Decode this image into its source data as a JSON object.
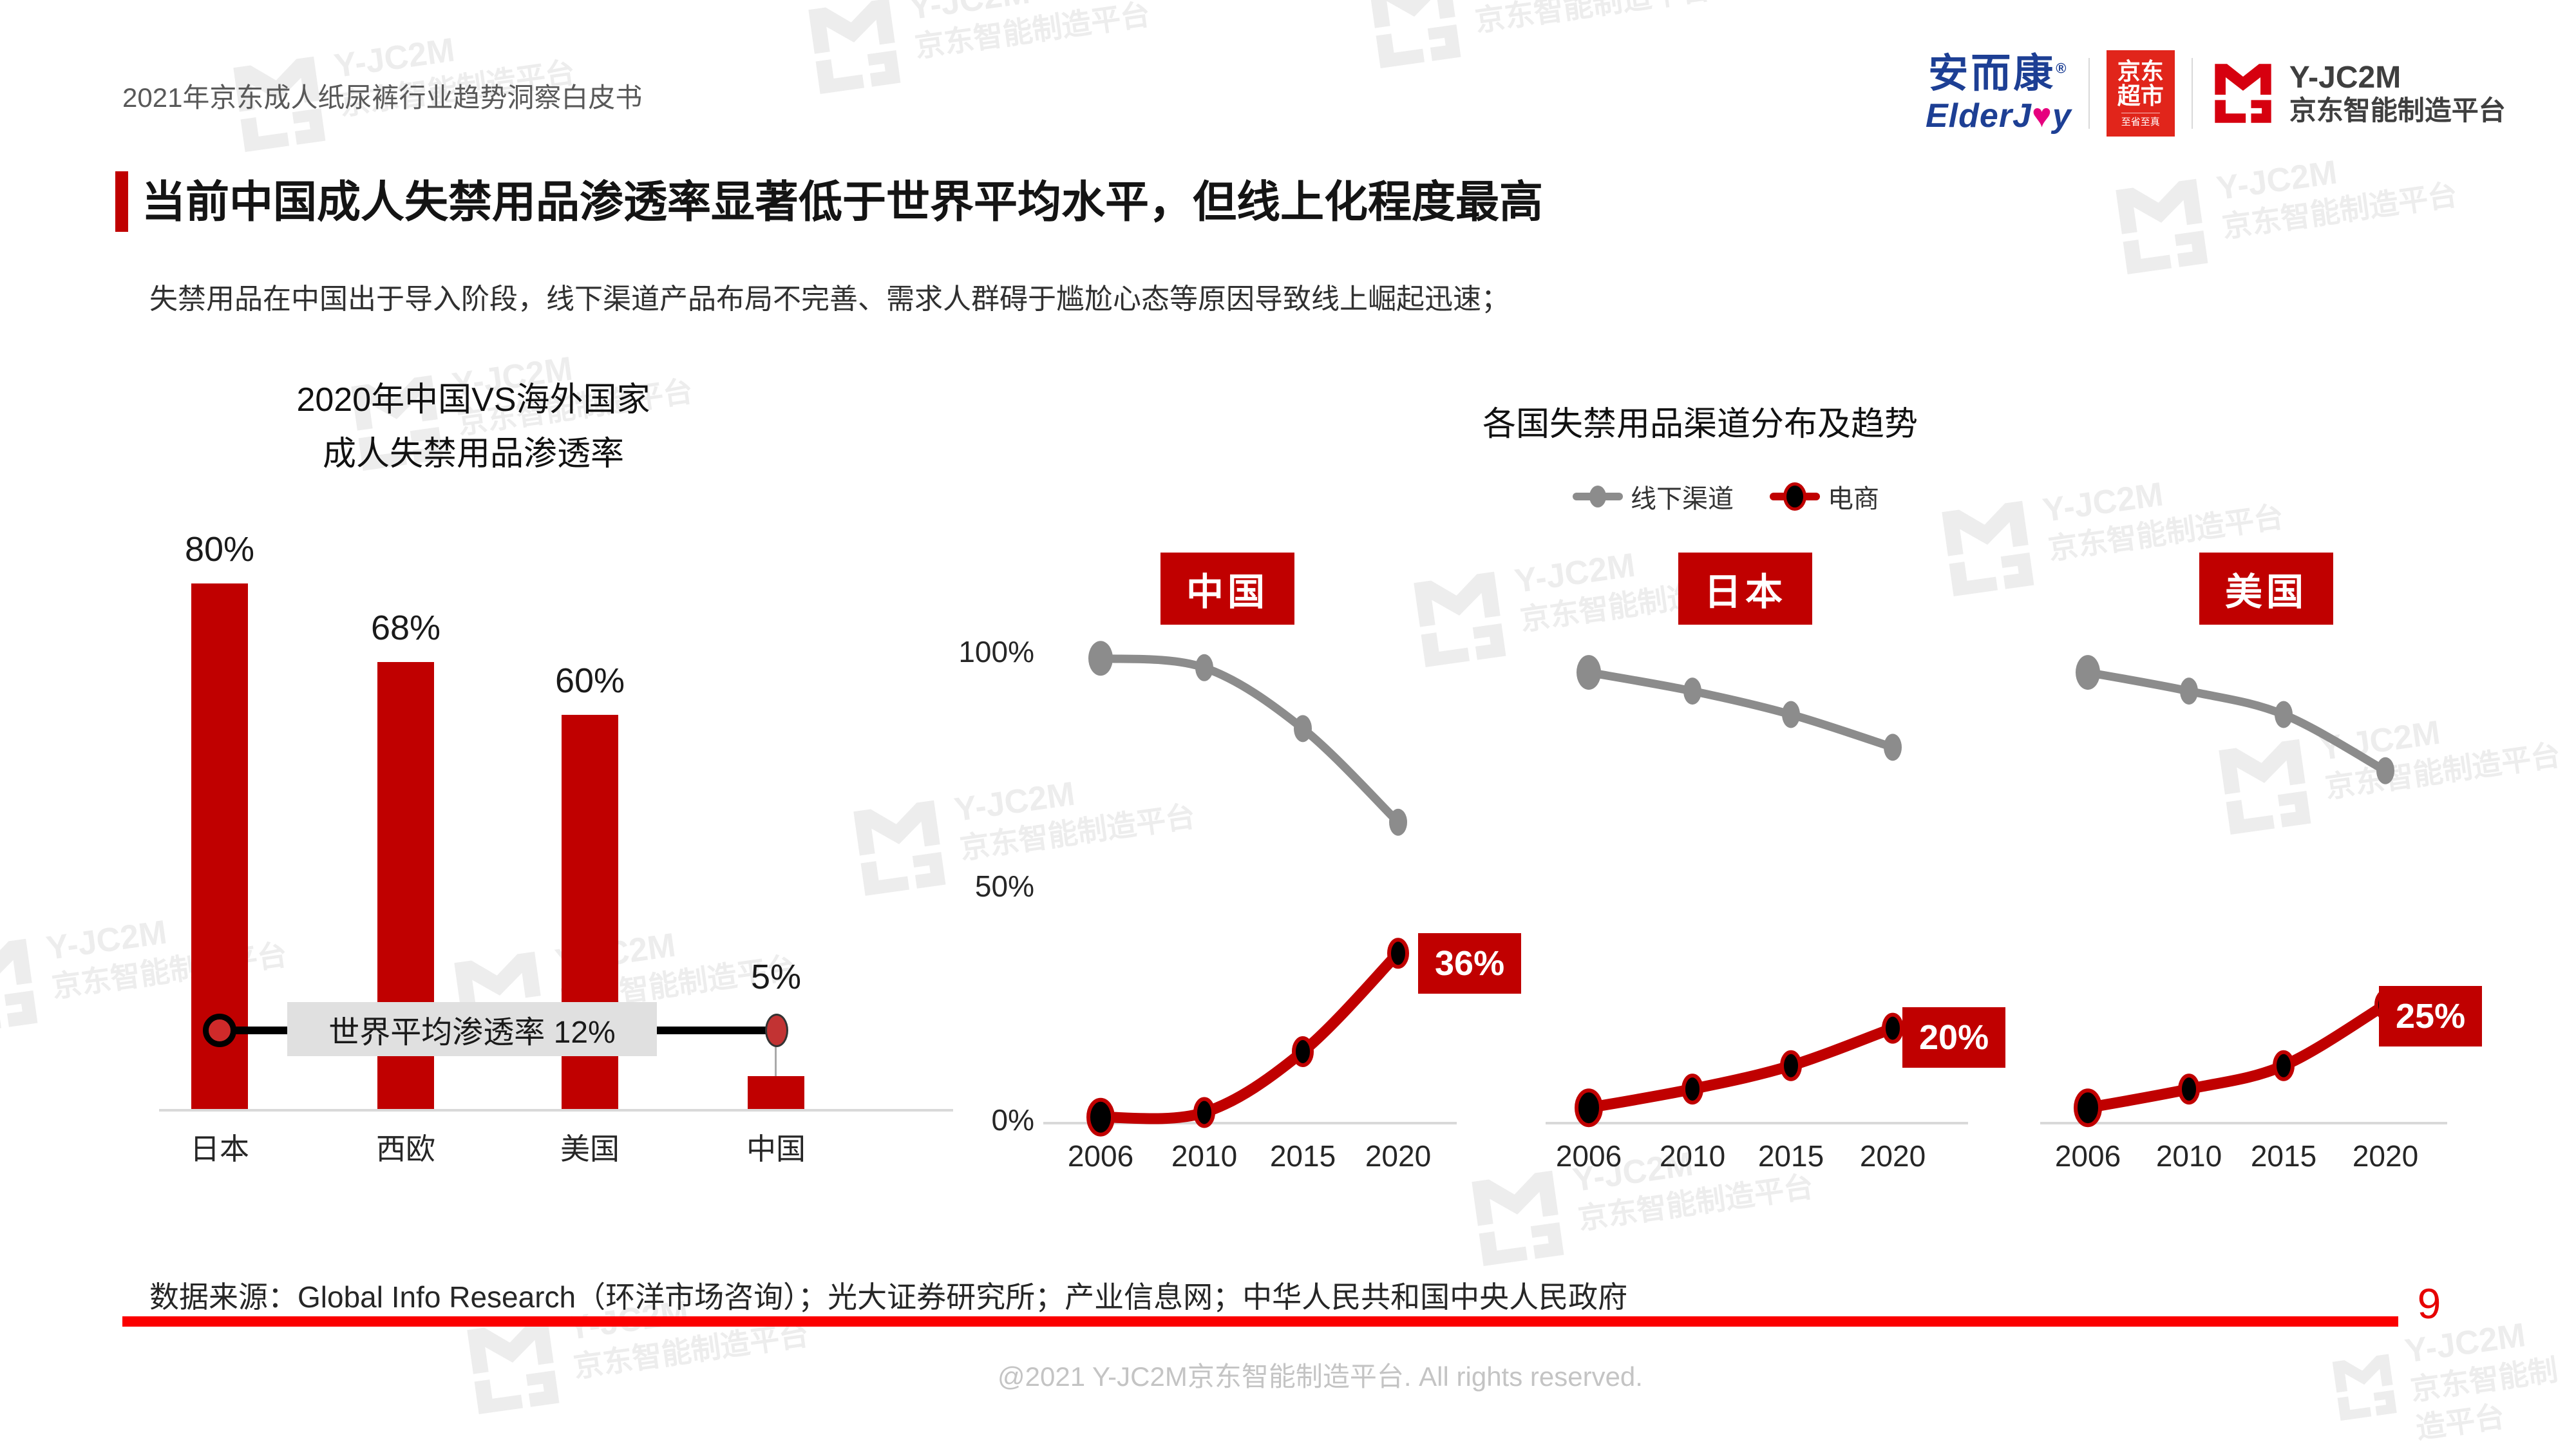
{
  "header": {
    "doc_title": "2021年京东成人纸尿裤行业趋势洞察白皮书",
    "logos": {
      "elderjoy_cn": "安而康",
      "elderjoy_reg": "®",
      "elderjoy_en_left": "ElderJ",
      "elderjoy_heart": "♥",
      "elderjoy_en_right": "y",
      "jd_market_line1": "京东",
      "jd_market_line2": "超市",
      "jd_market_slogan": "至省至真",
      "yjc2m_name": "Y-JC2M",
      "yjc2m_platform": "京东智能制造平台"
    }
  },
  "title": "当前中国成人失禁用品渗透率显著低于世界平均水平，但线上化程度最高",
  "subtitle": "失禁用品在中国出于导入阶段，线下渠道产品布局不完善、需求人群碍于尴尬心态等原因导致线上崛起迅速；",
  "watermark": {
    "name": "Y-JC2M",
    "platform": "京东智能制造平台"
  },
  "footer": {
    "source": "数据来源：Global Info Research（环洋市场咨询）；光大证券研究所；产业信息网；中华人民共和国中央人民政府",
    "page_number": "9",
    "copyright": "@2021 Y-JC2M京东智能制造平台. All rights reserved."
  },
  "chart_data": [
    {
      "type": "bar",
      "title_line1": "2020年中国VS海外国家",
      "title_line2": "成人失禁用品渗透率",
      "categories": [
        "日本",
        "西欧",
        "美国",
        "中国"
      ],
      "values": [
        80,
        68,
        60,
        5
      ],
      "value_labels": [
        "80%",
        "68%",
        "60%",
        "5%"
      ],
      "ylim": [
        0,
        100
      ],
      "bar_color": "#c00000",
      "reference_line": {
        "label": "世界平均渗透率 12%",
        "value": 12
      }
    },
    {
      "type": "line",
      "title": "各国失禁用品渠道分布及趋势",
      "x": [
        "2006",
        "2010",
        "2015",
        "2020"
      ],
      "y_ticks": [
        "100%",
        "50%",
        "0%"
      ],
      "y_tick_values": [
        100,
        50,
        0
      ],
      "ylim": [
        0,
        100
      ],
      "legend": [
        {
          "name": "线下渠道",
          "color": "#8c8c8c"
        },
        {
          "name": "电商",
          "color": "#c00000"
        }
      ],
      "panels": [
        {
          "country": "中国",
          "series": [
            {
              "name": "线下渠道",
              "values": [
                99,
                97,
                84,
                64
              ]
            },
            {
              "name": "电商",
              "values": [
                1,
                2,
                15,
                36
              ]
            }
          ],
          "end_label": "36%"
        },
        {
          "country": "日本",
          "series": [
            {
              "name": "线下渠道",
              "values": [
                96,
                92,
                87,
                80
              ]
            },
            {
              "name": "电商",
              "values": [
                3,
                7,
                12,
                20
              ]
            }
          ],
          "end_label": "20%"
        },
        {
          "country": "美国",
          "series": [
            {
              "name": "线下渠道",
              "values": [
                96,
                92,
                87,
                75
              ]
            },
            {
              "name": "电商",
              "values": [
                3,
                7,
                12,
                25
              ]
            }
          ],
          "end_label": "25%"
        }
      ],
      "offline_color": "#8c8c8c",
      "ecommerce_color": "#c00000",
      "marker_color": "#000000"
    }
  ]
}
